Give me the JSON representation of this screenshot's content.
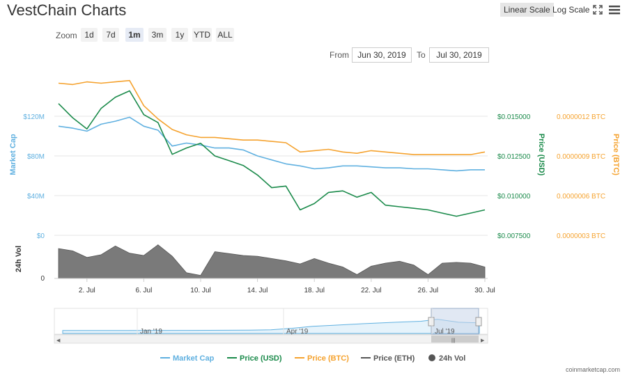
{
  "header": {
    "title": "VestChain Charts",
    "linear_scale": "Linear Scale",
    "log_scale": "Log Scale",
    "fullscreen_icon": "fullscreen-icon",
    "menu_icon": "hamburger-menu-icon"
  },
  "zoom": {
    "label": "Zoom",
    "options": [
      "1d",
      "7d",
      "1m",
      "3m",
      "1y",
      "YTD",
      "ALL"
    ],
    "active": "1m"
  },
  "range": {
    "from_label": "From",
    "from_value": "Jun 30, 2019",
    "to_label": "To",
    "to_value": "Jul 30, 2019"
  },
  "footer": {
    "credit": "coinmarketcap.com"
  },
  "colors": {
    "market_cap": "#5fb0e0",
    "price_usd": "#1a8a4a",
    "price_btc": "#f5a22e",
    "price_eth": "#555555",
    "volume": "#7a7a7a"
  },
  "chart_data": {
    "type": "line",
    "title": "VestChain Charts",
    "x_ticks": [
      "2. Jul",
      "6. Jul",
      "10. Jul",
      "14. Jul",
      "18. Jul",
      "22. Jul",
      "26. Jul",
      "30. Jul"
    ],
    "y_axes": {
      "market_cap": {
        "label": "Market Cap",
        "ticks": [
          "$0",
          "$40M",
          "$80M",
          "$120M"
        ],
        "range": [
          0,
          160000000
        ]
      },
      "price_usd": {
        "label": "Price (USD)",
        "ticks": [
          "$0.007500",
          "$0.010000",
          "$0.012500",
          "$0.015000"
        ],
        "range": [
          0.0075,
          0.0175
        ]
      },
      "price_btc": {
        "label": "Price (BTC)",
        "ticks": [
          "0.0000003 BTC",
          "0.0000006 BTC",
          "0.0000009 BTC",
          "0.0000012 BTC"
        ],
        "range": [
          3e-07,
          1.5e-06
        ]
      },
      "volume": {
        "label": "24h Vol",
        "ticks": [
          "0"
        ]
      }
    },
    "x": [
      "Jun 30",
      "Jul 1",
      "Jul 2",
      "Jul 3",
      "Jul 4",
      "Jul 5",
      "Jul 6",
      "Jul 7",
      "Jul 8",
      "Jul 9",
      "Jul 10",
      "Jul 11",
      "Jul 12",
      "Jul 13",
      "Jul 14",
      "Jul 15",
      "Jul 16",
      "Jul 17",
      "Jul 18",
      "Jul 19",
      "Jul 20",
      "Jul 21",
      "Jul 22",
      "Jul 23",
      "Jul 24",
      "Jul 25",
      "Jul 26",
      "Jul 27",
      "Jul 28",
      "Jul 29",
      "Jul 30"
    ],
    "series": [
      {
        "name": "Market Cap",
        "key": "market_cap",
        "values": [
          110000000,
          108000000,
          105000000,
          112000000,
          115000000,
          119000000,
          110000000,
          106000000,
          90000000,
          93000000,
          91000000,
          88000000,
          88000000,
          86000000,
          80000000,
          76000000,
          72000000,
          70000000,
          67000000,
          68000000,
          70000000,
          70000000,
          69000000,
          68000000,
          68000000,
          67000000,
          67000000,
          66000000,
          65000000,
          66000000,
          66000000
        ]
      },
      {
        "name": "Price (USD)",
        "key": "price_usd",
        "values": [
          0.0158,
          0.0149,
          0.0142,
          0.0155,
          0.0162,
          0.0166,
          0.0151,
          0.0146,
          0.0126,
          0.013,
          0.0133,
          0.0125,
          0.0122,
          0.0119,
          0.0113,
          0.0105,
          0.0106,
          0.0091,
          0.0095,
          0.0102,
          0.0103,
          0.0099,
          0.0102,
          0.0094,
          0.0093,
          0.0092,
          0.0091,
          0.0089,
          0.0087,
          0.0089,
          0.0091
        ]
      },
      {
        "name": "Price (BTC)",
        "key": "price_btc",
        "values": [
          1.45e-06,
          1.44e-06,
          1.46e-06,
          1.45e-06,
          1.46e-06,
          1.47e-06,
          1.28e-06,
          1.18e-06,
          1.1e-06,
          1.06e-06,
          1.04e-06,
          1.04e-06,
          1.03e-06,
          1.02e-06,
          1.02e-06,
          1.01e-06,
          1e-06,
          9.3e-07,
          9.4e-07,
          9.5e-07,
          9.3e-07,
          9.2e-07,
          9.4e-07,
          9.3e-07,
          9.2e-07,
          9.1e-07,
          9.1e-07,
          9.1e-07,
          9.1e-07,
          9.1e-07,
          9.3e-07
        ]
      },
      {
        "name": "24h Vol",
        "key": "volume",
        "values": [
          0.78,
          0.72,
          0.55,
          0.62,
          0.85,
          0.66,
          0.6,
          0.88,
          0.58,
          0.15,
          0.08,
          0.7,
          0.65,
          0.6,
          0.58,
          0.52,
          0.46,
          0.38,
          0.52,
          0.4,
          0.3,
          0.1,
          0.32,
          0.4,
          0.45,
          0.35,
          0.1,
          0.4,
          0.42,
          0.4,
          0.3
        ]
      }
    ],
    "navigator": {
      "ticks": [
        "Jan '19",
        "Apr '19",
        "Jul '19"
      ]
    },
    "legend": [
      "Market Cap",
      "Price (USD)",
      "Price (BTC)",
      "Price (ETH)",
      "24h Vol"
    ],
    "legend_position": "bottom"
  }
}
